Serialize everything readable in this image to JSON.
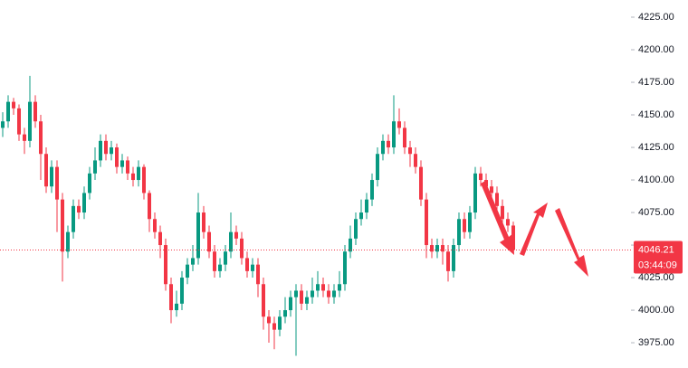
{
  "chart_data": {
    "type": "candlestick",
    "candles": [
      [
        4140,
        4152,
        4133,
        4145
      ],
      [
        4145,
        4165,
        4140,
        4160
      ],
      [
        4160,
        4163,
        4150,
        4155
      ],
      [
        4155,
        4158,
        4130,
        4135
      ],
      [
        4135,
        4140,
        4120,
        4130
      ],
      [
        4130,
        4180,
        4125,
        4160
      ],
      [
        4160,
        4165,
        4140,
        4145
      ],
      [
        4145,
        4150,
        4100,
        4120
      ],
      [
        4120,
        4125,
        4090,
        4095
      ],
      [
        4095,
        4115,
        4090,
        4110
      ],
      [
        4110,
        4115,
        4060,
        4085
      ],
      [
        4085,
        4090,
        4022,
        4045
      ],
      [
        4045,
        4065,
        4040,
        4060
      ],
      [
        4060,
        4085,
        4055,
        4080
      ],
      [
        4080,
        4085,
        4070,
        4075
      ],
      [
        4075,
        4095,
        4070,
        4090
      ],
      [
        4090,
        4110,
        4085,
        4105
      ],
      [
        4105,
        4125,
        4100,
        4115
      ],
      [
        4115,
        4135,
        4110,
        4130
      ],
      [
        4130,
        4135,
        4115,
        4120
      ],
      [
        4120,
        4130,
        4115,
        4125
      ],
      [
        4125,
        4128,
        4105,
        4110
      ],
      [
        4110,
        4120,
        4105,
        4115
      ],
      [
        4115,
        4118,
        4100,
        4105
      ],
      [
        4105,
        4110,
        4095,
        4100
      ],
      [
        4100,
        4115,
        4095,
        4110
      ],
      [
        4110,
        4112,
        4085,
        4090
      ],
      [
        4090,
        4092,
        4060,
        4070
      ],
      [
        4070,
        4075,
        4055,
        4060
      ],
      [
        4060,
        4065,
        4040,
        4050
      ],
      [
        4050,
        4055,
        4015,
        4020
      ],
      [
        4020,
        4025,
        3990,
        4000
      ],
      [
        4000,
        4015,
        3995,
        4005
      ],
      [
        4005,
        4030,
        4000,
        4025
      ],
      [
        4025,
        4040,
        4020,
        4035
      ],
      [
        4035,
        4050,
        4030,
        4040
      ],
      [
        4040,
        4090,
        4035,
        4075
      ],
      [
        4075,
        4080,
        4055,
        4060
      ],
      [
        4060,
        4065,
        4040,
        4045
      ],
      [
        4045,
        4050,
        4025,
        4030
      ],
      [
        4030,
        4040,
        4025,
        4035
      ],
      [
        4035,
        4050,
        4030,
        4045
      ],
      [
        4045,
        4075,
        4040,
        4060
      ],
      [
        4060,
        4065,
        4050,
        4055
      ],
      [
        4055,
        4060,
        4035,
        4040
      ],
      [
        4040,
        4045,
        4025,
        4030
      ],
      [
        4030,
        4040,
        4025,
        4035
      ],
      [
        4035,
        4040,
        4010,
        4020
      ],
      [
        4020,
        4025,
        3985,
        3995
      ],
      [
        3995,
        4000,
        3975,
        3990
      ],
      [
        3990,
        3995,
        3970,
        3985
      ],
      [
        3985,
        4000,
        3980,
        3995
      ],
      [
        3995,
        4010,
        3990,
        4000
      ],
      [
        4000,
        4015,
        3995,
        4010
      ],
      [
        4010,
        4020,
        3965,
        4015
      ],
      [
        4015,
        4020,
        4000,
        4005
      ],
      [
        4005,
        4015,
        4000,
        4010
      ],
      [
        4010,
        4025,
        4005,
        4015
      ],
      [
        4015,
        4030,
        4010,
        4020
      ],
      [
        4020,
        4025,
        4010,
        4015
      ],
      [
        4015,
        4020,
        4005,
        4010
      ],
      [
        4010,
        4020,
        4005,
        4015
      ],
      [
        4015,
        4030,
        4010,
        4020
      ],
      [
        4020,
        4050,
        4015,
        4045
      ],
      [
        4045,
        4065,
        4040,
        4055
      ],
      [
        4055,
        4075,
        4050,
        4070
      ],
      [
        4070,
        4085,
        4065,
        4075
      ],
      [
        4075,
        4090,
        4070,
        4085
      ],
      [
        4085,
        4105,
        4080,
        4100
      ],
      [
        4100,
        4125,
        4095,
        4120
      ],
      [
        4120,
        4135,
        4115,
        4130
      ],
      [
        4130,
        4135,
        4120,
        4125
      ],
      [
        4125,
        4165,
        4120,
        4145
      ],
      [
        4145,
        4155,
        4135,
        4140
      ],
      [
        4140,
        4145,
        4120,
        4125
      ],
      [
        4125,
        4130,
        4110,
        4120
      ],
      [
        4120,
        4125,
        4105,
        4110
      ],
      [
        4110,
        4115,
        4080,
        4085
      ],
      [
        4085,
        4090,
        4040,
        4050
      ],
      [
        4050,
        4055,
        4040,
        4045
      ],
      [
        4045,
        4055,
        4040,
        4050
      ],
      [
        4050,
        4055,
        4035,
        4045
      ],
      [
        4045,
        4050,
        4022,
        4030
      ],
      [
        4030,
        4055,
        4025,
        4050
      ],
      [
        4050,
        4075,
        4045,
        4070
      ],
      [
        4070,
        4075,
        4055,
        4060
      ],
      [
        4060,
        4080,
        4055,
        4075
      ],
      [
        4075,
        4110,
        4070,
        4105
      ],
      [
        4105,
        4110,
        4095,
        4100
      ],
      [
        4100,
        4105,
        4090,
        4095
      ],
      [
        4095,
        4100,
        4085,
        4090
      ],
      [
        4090,
        4095,
        4075,
        4080
      ],
      [
        4080,
        4085,
        4065,
        4070
      ],
      [
        4070,
        4075,
        4060,
        4065
      ],
      [
        4065,
        4068,
        4044,
        4046.21
      ]
    ],
    "up_color": "#089981",
    "down_color": "#f23645",
    "ylim": [
      3955.6,
      4238.2
    ],
    "yticks": [
      {
        "value": 3975,
        "label": "3975.00"
      },
      {
        "value": 4000,
        "label": "4000.00"
      },
      {
        "value": 4025,
        "label": "4025.00"
      },
      {
        "value": 4050,
        "label": "4050.00"
      },
      {
        "value": 4075,
        "label": "4075.00"
      },
      {
        "value": 4100,
        "label": "4100.00"
      },
      {
        "value": 4125,
        "label": "4125.00"
      },
      {
        "value": 4150,
        "label": "4150.00"
      },
      {
        "value": 4175,
        "label": "4175.00"
      },
      {
        "value": 4200,
        "label": "4200.00"
      },
      {
        "value": 4225,
        "label": "4225.00"
      }
    ],
    "last_price": 4046.21,
    "countdown": "03:44:09"
  }
}
